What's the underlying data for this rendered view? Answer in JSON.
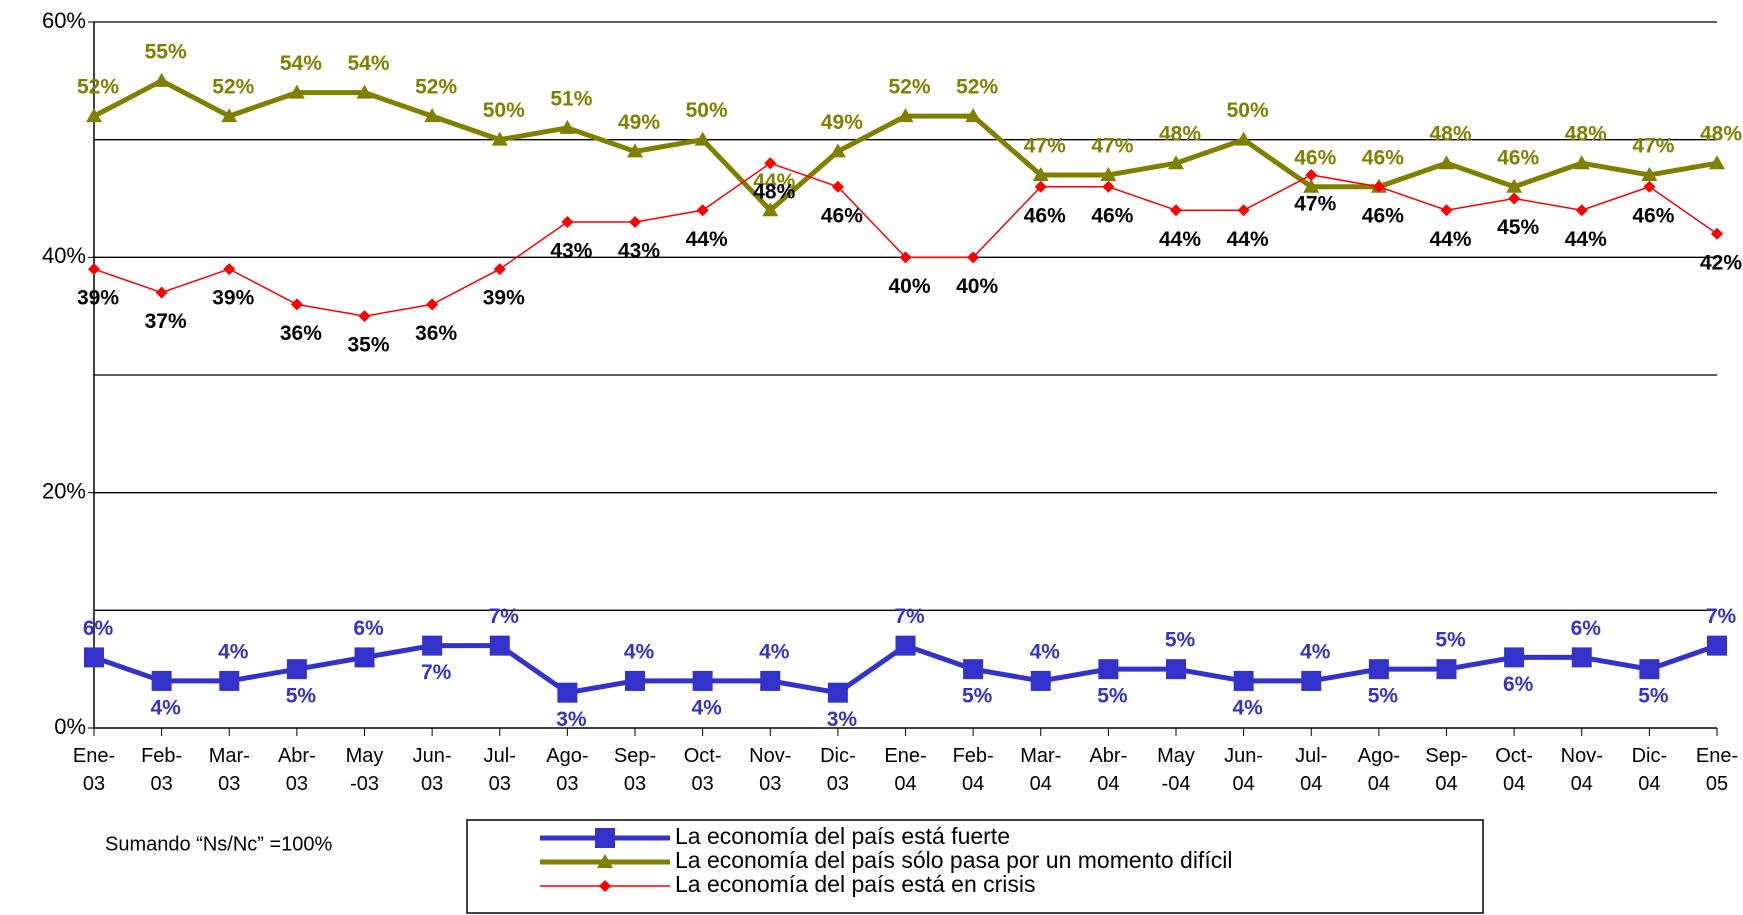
{
  "chart_data": {
    "type": "line",
    "categories": [
      "Ene-03",
      "Feb-03",
      "Mar-03",
      "Abr-03",
      "May-03",
      "Jun-03",
      "Jul-03",
      "Ago-03",
      "Sep-03",
      "Oct-03",
      "Nov-03",
      "Dic-03",
      "Ene-04",
      "Feb-04",
      "Mar-04",
      "Abr-04",
      "May-04",
      "Jun-04",
      "Jul-04",
      "Ago-04",
      "Sep-04",
      "Oct-04",
      "Nov-04",
      "Dic-04",
      "Ene-05"
    ],
    "series": [
      {
        "name": "La economía del país está fuerte",
        "color": "#3333cc",
        "marker": "square",
        "values": [
          6,
          4,
          4,
          5,
          6,
          7,
          7,
          3,
          4,
          4,
          4,
          3,
          7,
          5,
          4,
          5,
          5,
          4,
          4,
          5,
          5,
          6,
          6,
          5,
          7
        ],
        "value_labels": [
          "6%",
          "4%",
          "4%",
          "5%",
          "6%",
          "7%",
          "7%",
          "3%",
          "4%",
          "4%",
          "4%",
          "3%",
          "7%",
          "5%",
          "4%",
          "5%",
          "5%",
          "4%",
          "4%",
          "5%",
          "5%",
          "6%",
          "6%",
          "5%",
          "7%"
        ]
      },
      {
        "name": "La economía del país sólo pasa por un momento difícil",
        "color": "#808000",
        "marker": "triangle",
        "values": [
          52,
          55,
          52,
          54,
          54,
          52,
          50,
          51,
          49,
          50,
          44,
          49,
          52,
          52,
          47,
          47,
          48,
          50,
          46,
          46,
          48,
          46,
          48,
          47,
          48
        ],
        "value_labels": [
          "52%",
          "55%",
          "52%",
          "54%",
          "54%",
          "52%",
          "50%",
          "51%",
          "49%",
          "50%",
          "44%",
          "49%",
          "52%",
          "52%",
          "47%",
          "47%",
          "48%",
          "50%",
          "46%",
          "46%",
          "48%",
          "46%",
          "48%",
          "47%",
          "48%"
        ]
      },
      {
        "name": "La economía del país está en crisis",
        "color": "#ff0000",
        "marker": "diamond",
        "values": [
          39,
          37,
          39,
          36,
          35,
          36,
          39,
          43,
          43,
          44,
          48,
          46,
          40,
          40,
          46,
          46,
          44,
          44,
          47,
          46,
          44,
          45,
          44,
          46,
          42
        ],
        "value_labels": [
          "39%",
          "37%",
          "39%",
          "36%",
          "35%",
          "36%",
          "39%",
          "43%",
          "43%",
          "44%",
          "48%",
          "46%",
          "40%",
          "40%",
          "46%",
          "46%",
          "44%",
          "44%",
          "47%",
          "46%",
          "44%",
          "45%",
          "44%",
          "46%",
          "42%"
        ]
      }
    ],
    "ylim": [
      0,
      60
    ],
    "yticks": [
      {
        "value": 0,
        "label": "0%"
      },
      {
        "value": 20,
        "label": "20%"
      },
      {
        "value": 40,
        "label": "40%"
      },
      {
        "value": 60,
        "label": "60%"
      }
    ],
    "ygrid": [
      10,
      20,
      30,
      40,
      50,
      60
    ],
    "legend": "bottom",
    "annotation": "Sumando “Ns/Nc” =100%"
  }
}
